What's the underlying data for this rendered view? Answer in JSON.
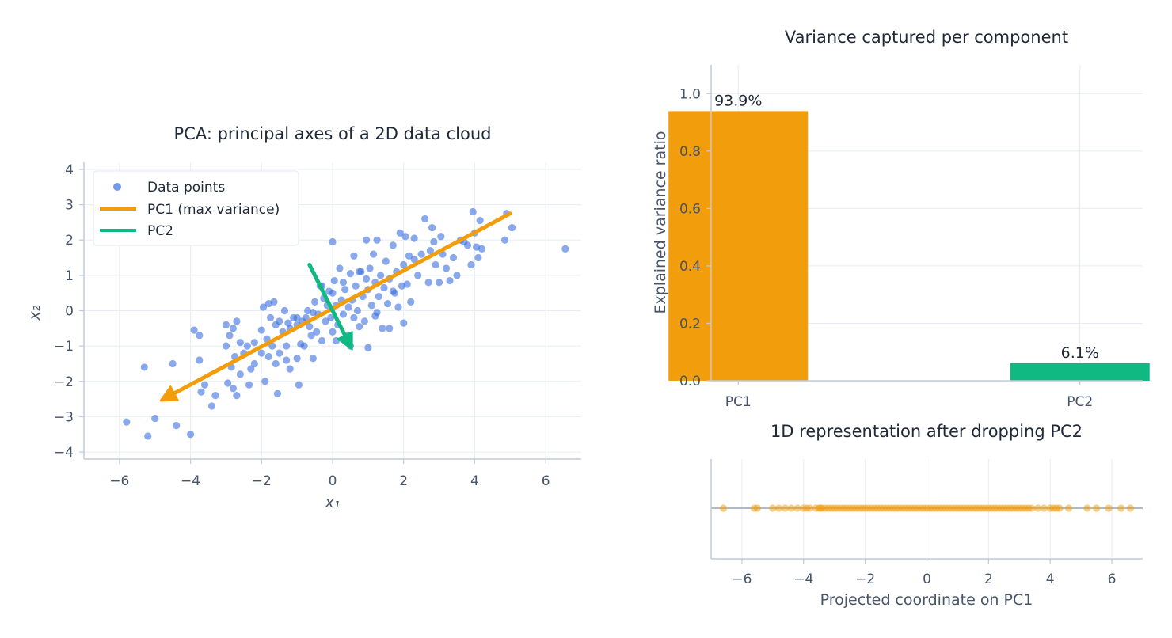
{
  "chart_data": [
    {
      "type": "scatter",
      "title": "PCA: principal axes of a 2D data cloud",
      "xlabel": "x₁",
      "ylabel": "x₂",
      "xlim": [
        -7,
        7
      ],
      "ylim": [
        -4.2,
        4.2
      ],
      "xticks": [
        -6,
        -4,
        -2,
        0,
        2,
        4,
        6
      ],
      "yticks": [
        -4,
        -3,
        -2,
        -1,
        0,
        1,
        2,
        3,
        4
      ],
      "xtick_labels": [
        "−6",
        "−4",
        "−2",
        "0",
        "2",
        "4",
        "6"
      ],
      "ytick_labels": [
        "−4",
        "−3",
        "−2",
        "−1",
        "0",
        "1",
        "2",
        "3",
        "4"
      ],
      "grid": true,
      "legend": {
        "placement": "top-left",
        "entries": [
          {
            "label": "Data points",
            "marker": "dot",
            "color": "#3b6fe0"
          },
          {
            "label": "PC1 (max variance)",
            "marker": "line",
            "color": "#f29d0c"
          },
          {
            "label": "PC2",
            "marker": "line",
            "color": "#10b981"
          }
        ]
      },
      "colors": {
        "points": "#3b6fe0",
        "pc1": "#f29d0c",
        "pc2": "#10b981"
      },
      "arrows": [
        {
          "name": "PC1 (max variance)",
          "from": [
            5.0,
            2.75
          ],
          "to": [
            -4.85,
            -2.55
          ]
        },
        {
          "name": "PC2",
          "from": [
            -0.65,
            1.3
          ],
          "to": [
            0.55,
            -1.1
          ]
        }
      ],
      "points": [
        [
          -5.8,
          -3.15
        ],
        [
          -5.3,
          -1.6
        ],
        [
          -5.2,
          -3.55
        ],
        [
          -5.0,
          -3.05
        ],
        [
          -4.5,
          -1.5
        ],
        [
          -4.4,
          -3.25
        ],
        [
          -4.0,
          -3.5
        ],
        [
          -3.9,
          -0.55
        ],
        [
          -3.75,
          -0.7
        ],
        [
          -3.75,
          -1.4
        ],
        [
          -3.7,
          -2.3
        ],
        [
          -3.6,
          -2.1
        ],
        [
          -3.4,
          -2.7
        ],
        [
          -3.3,
          -2.4
        ],
        [
          -3.0,
          -0.4
        ],
        [
          -3.0,
          -1.0
        ],
        [
          -2.95,
          -2.05
        ],
        [
          -2.9,
          -0.7
        ],
        [
          -2.85,
          -1.6
        ],
        [
          -2.8,
          -0.5
        ],
        [
          -2.8,
          -2.2
        ],
        [
          -2.75,
          -1.3
        ],
        [
          -2.7,
          -0.3
        ],
        [
          -2.7,
          -2.4
        ],
        [
          -2.6,
          -1.8
        ],
        [
          -2.5,
          -1.2
        ],
        [
          -2.4,
          -1.0
        ],
        [
          -2.35,
          -2.1
        ],
        [
          -2.3,
          -1.65
        ],
        [
          -2.2,
          -0.9
        ],
        [
          -2.2,
          -1.5
        ],
        [
          -2.0,
          -0.55
        ],
        [
          -2.0,
          -1.2
        ],
        [
          -1.95,
          0.1
        ],
        [
          -1.9,
          -2.0
        ],
        [
          -1.85,
          -0.8
        ],
        [
          -1.8,
          0.2
        ],
        [
          -1.8,
          -1.3
        ],
        [
          -1.75,
          -0.2
        ],
        [
          -1.7,
          -1.0
        ],
        [
          -1.65,
          0.25
        ],
        [
          -1.6,
          -0.4
        ],
        [
          -1.6,
          -1.5
        ],
        [
          -1.55,
          -2.35
        ],
        [
          -1.5,
          -0.3
        ],
        [
          -1.5,
          -1.2
        ],
        [
          -1.4,
          -0.6
        ],
        [
          -1.35,
          0.0
        ],
        [
          -1.3,
          -1.0
        ],
        [
          -1.25,
          -0.35
        ],
        [
          -1.2,
          -0.5
        ],
        [
          -1.2,
          -1.65
        ],
        [
          -1.1,
          -0.2
        ],
        [
          -1.0,
          -0.4
        ],
        [
          -1.0,
          -1.35
        ],
        [
          -0.95,
          -2.1
        ],
        [
          -0.9,
          -0.95
        ],
        [
          -0.85,
          -0.3
        ],
        [
          -0.8,
          -1.0
        ],
        [
          -0.75,
          -0.2
        ],
        [
          -0.7,
          0.0
        ],
        [
          -0.65,
          -0.45
        ],
        [
          -0.6,
          -0.7
        ],
        [
          -0.55,
          -1.35
        ],
        [
          -0.5,
          0.25
        ],
        [
          -0.45,
          -0.6
        ],
        [
          -0.4,
          -0.1
        ],
        [
          -0.35,
          0.7
        ],
        [
          -0.3,
          -0.85
        ],
        [
          -0.25,
          0.35
        ],
        [
          -0.2,
          -0.3
        ],
        [
          -0.15,
          0.15
        ],
        [
          -0.1,
          0.55
        ],
        [
          -0.05,
          -0.2
        ],
        [
          0.0,
          1.95
        ],
        [
          0.0,
          0.5
        ],
        [
          0.0,
          -0.6
        ],
        [
          0.05,
          0.85
        ],
        [
          0.1,
          0.15
        ],
        [
          0.15,
          -0.4
        ],
        [
          0.2,
          1.2
        ],
        [
          0.25,
          0.3
        ],
        [
          0.3,
          -0.1
        ],
        [
          0.35,
          0.6
        ],
        [
          0.4,
          -0.7
        ],
        [
          0.45,
          0.1
        ],
        [
          0.5,
          1.05
        ],
        [
          0.5,
          -1.0
        ],
        [
          0.55,
          0.3
        ],
        [
          0.6,
          -0.2
        ],
        [
          0.6,
          1.55
        ],
        [
          0.65,
          0.7
        ],
        [
          0.7,
          0.0
        ],
        [
          0.75,
          -0.45
        ],
        [
          0.8,
          1.1
        ],
        [
          0.85,
          0.4
        ],
        [
          0.9,
          -0.3
        ],
        [
          0.95,
          2.0
        ],
        [
          0.95,
          0.9
        ],
        [
          1.0,
          -1.05
        ],
        [
          1.0,
          0.6
        ],
        [
          1.05,
          1.2
        ],
        [
          1.1,
          0.15
        ],
        [
          1.15,
          1.6
        ],
        [
          1.2,
          0.8
        ],
        [
          1.2,
          -0.15
        ],
        [
          1.25,
          2.0
        ],
        [
          1.3,
          0.4
        ],
        [
          1.35,
          1.0
        ],
        [
          1.4,
          -0.5
        ],
        [
          1.45,
          0.65
        ],
        [
          1.5,
          1.4
        ],
        [
          1.55,
          0.2
        ],
        [
          1.6,
          0.9
        ],
        [
          1.6,
          -0.5
        ],
        [
          1.7,
          1.85
        ],
        [
          1.75,
          0.5
        ],
        [
          1.8,
          1.1
        ],
        [
          1.85,
          0.1
        ],
        [
          1.9,
          2.2
        ],
        [
          1.95,
          0.7
        ],
        [
          2.0,
          1.3
        ],
        [
          2.0,
          -0.35
        ],
        [
          2.05,
          2.1
        ],
        [
          2.1,
          0.75
        ],
        [
          2.15,
          1.55
        ],
        [
          2.2,
          0.25
        ],
        [
          2.3,
          2.05
        ],
        [
          2.4,
          1.0
        ],
        [
          2.5,
          1.6
        ],
        [
          2.6,
          2.6
        ],
        [
          2.7,
          0.8
        ],
        [
          2.75,
          1.7
        ],
        [
          2.8,
          2.35
        ],
        [
          2.85,
          1.95
        ],
        [
          2.9,
          1.3
        ],
        [
          3.0,
          0.8
        ],
        [
          3.05,
          2.1
        ],
        [
          3.1,
          1.6
        ],
        [
          3.2,
          1.2
        ],
        [
          3.3,
          0.85
        ],
        [
          3.4,
          1.5
        ],
        [
          3.5,
          1.0
        ],
        [
          3.6,
          2.0
        ],
        [
          3.7,
          1.95
        ],
        [
          3.8,
          1.85
        ],
        [
          3.9,
          1.3
        ],
        [
          3.95,
          2.8
        ],
        [
          4.0,
          2.2
        ],
        [
          4.05,
          1.8
        ],
        [
          4.1,
          1.5
        ],
        [
          4.15,
          2.55
        ],
        [
          4.2,
          1.75
        ],
        [
          4.85,
          2.0
        ],
        [
          4.9,
          2.75
        ],
        [
          5.05,
          2.35
        ],
        [
          6.55,
          1.75
        ],
        [
          -0.3,
          0.7
        ],
        [
          0.3,
          0.8
        ],
        [
          -1.0,
          -0.2
        ],
        [
          1.7,
          0.55
        ],
        [
          -2.6,
          -0.9
        ],
        [
          2.3,
          1.45
        ],
        [
          0.75,
          1.1
        ],
        [
          -0.55,
          -0.05
        ],
        [
          1.25,
          -0.05
        ],
        [
          -1.3,
          -1.4
        ],
        [
          0.1,
          -0.85
        ]
      ]
    },
    {
      "type": "bar",
      "title": "Variance captured per component",
      "xlabel": "",
      "ylabel": "Explained variance ratio",
      "categories": [
        "PC1",
        "PC2"
      ],
      "values": [
        0.939,
        0.061
      ],
      "data_labels": [
        "93.9%",
        "6.1%"
      ],
      "colors": [
        "#f29d0c",
        "#10b981"
      ],
      "ylim": [
        0,
        1.1
      ],
      "yticks": [
        0.0,
        0.2,
        0.4,
        0.6,
        0.8,
        1.0
      ],
      "ytick_labels": [
        "0.0",
        "0.2",
        "0.4",
        "0.6",
        "0.8",
        "1.0"
      ],
      "grid": true
    },
    {
      "type": "scatter",
      "title": "1D representation after dropping PC2",
      "xlabel": "Projected coordinate on PC1",
      "ylabel": "",
      "xlim": [
        -7,
        7
      ],
      "xticks": [
        -6,
        -4,
        -2,
        0,
        2,
        4,
        6
      ],
      "xtick_labels": [
        "−6",
        "−4",
        "−2",
        "0",
        "2",
        "4",
        "6"
      ],
      "grid": true,
      "color": "#f29d0c",
      "values": [
        -6.6,
        -5.6,
        -5.5,
        -5.0,
        -4.8,
        -4.6,
        -4.4,
        -4.2,
        -4.0,
        -3.9,
        -3.8,
        -3.6,
        -3.5,
        -3.45,
        -3.4,
        -3.3,
        -3.2,
        -3.1,
        -3.0,
        -2.9,
        -2.8,
        -2.7,
        -2.6,
        -2.5,
        -2.4,
        -2.3,
        -2.2,
        -2.1,
        -2.0,
        -1.9,
        -1.8,
        -1.7,
        -1.6,
        -1.5,
        -1.4,
        -1.3,
        -1.2,
        -1.1,
        -1.0,
        -0.9,
        -0.8,
        -0.7,
        -0.6,
        -0.5,
        -0.4,
        -0.3,
        -0.2,
        -0.1,
        0.0,
        0.1,
        0.2,
        0.3,
        0.4,
        0.5,
        0.6,
        0.7,
        0.8,
        0.9,
        1.0,
        1.1,
        1.2,
        1.3,
        1.4,
        1.5,
        1.6,
        1.7,
        1.8,
        1.9,
        2.0,
        2.1,
        2.2,
        2.3,
        2.4,
        2.5,
        2.6,
        2.7,
        2.8,
        2.9,
        3.0,
        3.1,
        3.2,
        3.3,
        3.4,
        3.6,
        3.8,
        4.0,
        4.1,
        4.2,
        4.3,
        4.6,
        5.2,
        5.5,
        5.9,
        6.3,
        6.6
      ]
    }
  ]
}
